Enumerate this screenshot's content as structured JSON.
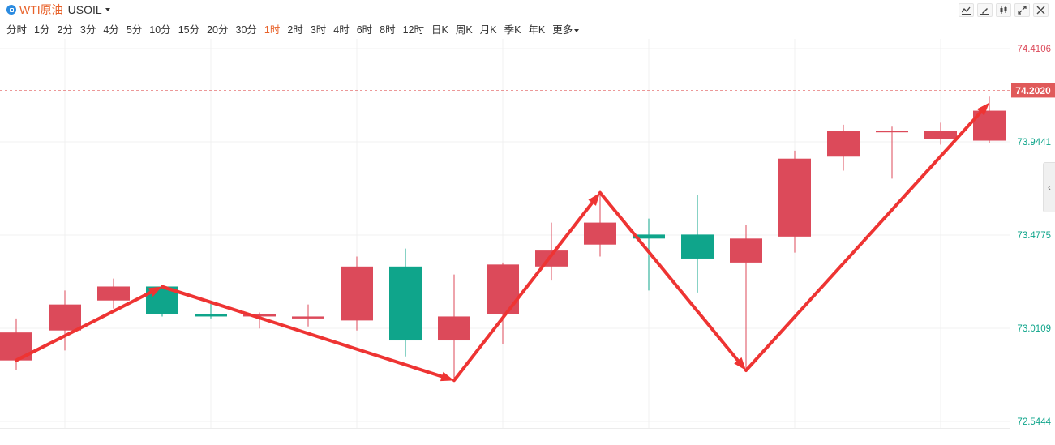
{
  "header": {
    "instrument": "WTI原油",
    "symbol": "USOIL",
    "tool_icons": [
      "line-tool-icon",
      "pen-tool-icon",
      "candle-type-icon",
      "fullscreen-icon",
      "close-icon"
    ]
  },
  "timeframes": [
    "分时",
    "1分",
    "2分",
    "3分",
    "4分",
    "5分",
    "10分",
    "15分",
    "20分",
    "30分",
    "1时",
    "2时",
    "3时",
    "4时",
    "6时",
    "8时",
    "12时",
    "日K",
    "周K",
    "月K",
    "季K",
    "年K",
    "更多"
  ],
  "active_timeframe": "1时",
  "colors": {
    "up": "#dc4a5a",
    "down": "#0fa58b",
    "arrow": "#ee3433",
    "grid": "#f1f1f1",
    "price_line": "#e05a5a"
  },
  "chart_data": {
    "type": "candlestick",
    "ylim": [
      72.5444,
      74.4106
    ],
    "y_ticks": [
      "74.4106",
      "73.9441",
      "73.4775",
      "73.0109",
      "72.5444"
    ],
    "current_price": "74.2020",
    "candles": [
      {
        "o": 72.85,
        "h": 73.06,
        "l": 72.8,
        "c": 72.99
      },
      {
        "o": 73.0,
        "h": 73.2,
        "l": 72.9,
        "c": 73.13
      },
      {
        "o": 73.15,
        "h": 73.26,
        "l": 73.11,
        "c": 73.22
      },
      {
        "o": 73.22,
        "h": 73.23,
        "l": 73.07,
        "c": 73.08
      },
      {
        "o": 73.08,
        "h": 73.14,
        "l": 73.06,
        "c": 73.07
      },
      {
        "o": 73.07,
        "h": 73.09,
        "l": 73.01,
        "c": 73.08
      },
      {
        "o": 73.06,
        "h": 73.13,
        "l": 73.02,
        "c": 73.07
      },
      {
        "o": 73.05,
        "h": 73.37,
        "l": 73.0,
        "c": 73.32
      },
      {
        "o": 73.32,
        "h": 73.41,
        "l": 72.87,
        "c": 72.95
      },
      {
        "o": 72.95,
        "h": 73.28,
        "l": 72.75,
        "c": 73.07
      },
      {
        "o": 73.08,
        "h": 73.34,
        "l": 72.93,
        "c": 73.33
      },
      {
        "o": 73.32,
        "h": 73.54,
        "l": 73.25,
        "c": 73.4
      },
      {
        "o": 73.43,
        "h": 73.69,
        "l": 73.37,
        "c": 73.54
      },
      {
        "o": 73.48,
        "h": 73.56,
        "l": 73.2,
        "c": 73.46
      },
      {
        "o": 73.48,
        "h": 73.68,
        "l": 73.19,
        "c": 73.36
      },
      {
        "o": 73.34,
        "h": 73.53,
        "l": 72.8,
        "c": 73.46
      },
      {
        "o": 73.47,
        "h": 73.9,
        "l": 73.39,
        "c": 73.86
      },
      {
        "o": 73.87,
        "h": 74.03,
        "l": 73.8,
        "c": 74.0
      },
      {
        "o": 74.0,
        "h": 74.02,
        "l": 73.76,
        "c": 74.0
      },
      {
        "o": 73.96,
        "h": 74.04,
        "l": 73.93,
        "c": 74.0
      },
      {
        "o": 73.95,
        "h": 74.17,
        "l": 73.94,
        "c": 74.1
      }
    ],
    "arrows": [
      {
        "from": [
          0,
          72.85
        ],
        "to": [
          3,
          73.22
        ],
        "head": true,
        "width": 4
      },
      {
        "from": [
          3,
          73.22
        ],
        "to": [
          9,
          72.75
        ],
        "head": true,
        "width": 4
      },
      {
        "from": [
          9,
          72.75
        ],
        "to": [
          12,
          73.69
        ],
        "head": true,
        "width": 4
      },
      {
        "from": [
          12,
          73.69
        ],
        "to": [
          15,
          72.8
        ],
        "head": true,
        "width": 4
      },
      {
        "from": [
          15,
          72.8
        ],
        "to": [
          20,
          74.14
        ],
        "head": true,
        "width": 4
      }
    ]
  }
}
